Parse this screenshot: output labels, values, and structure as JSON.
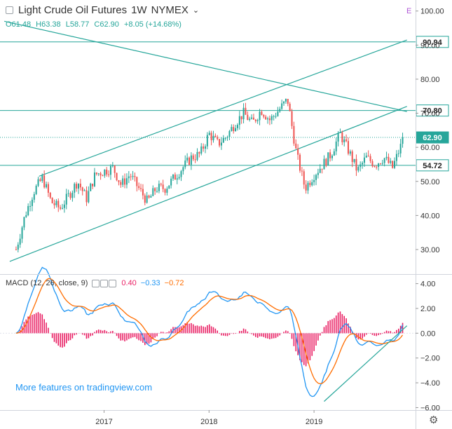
{
  "header": {
    "symbol": "Light Crude Oil Futures",
    "interval": "1W",
    "exchange": "NYMEX",
    "dropdown_glyph": "⌄",
    "badge": "E",
    "ohlc": {
      "o": "O61.48",
      "h": "H63.38",
      "l": "L58.77",
      "c": "C62.90",
      "chg": "+8.05 (+14.68%)"
    }
  },
  "macd_legend": {
    "label": "MACD (12, 26, close, 9)",
    "hist": "0.40",
    "macd": "−0.33",
    "signal": "−0.72",
    "colors": {
      "hist": "#e91e63",
      "macd": "#2196f3",
      "signal": "#ff6d00"
    }
  },
  "watermark": "More features on tradingview.com",
  "price_axis": {
    "ticks": [
      "100.00",
      "90.00",
      "80.00",
      "70.00",
      "60.00",
      "50.00",
      "40.00",
      "30.00"
    ],
    "tick_values": [
      100,
      90,
      80,
      70,
      60,
      50,
      40,
      30
    ]
  },
  "macd_axis": {
    "ticks": [
      "4.00",
      "2.00",
      "0.00",
      "−2.00",
      "−4.00",
      "−6.00"
    ],
    "tick_values": [
      4,
      2,
      0,
      -2,
      -4,
      -6
    ]
  },
  "time_axis": {
    "ticks": [
      "2017",
      "2018",
      "2019"
    ]
  },
  "levels": [
    {
      "label": "90.94",
      "value": 90.94
    },
    {
      "label": "70.80",
      "value": 70.8
    },
    {
      "label": "62.90",
      "value": 62.9,
      "current": true
    },
    {
      "label": "54.72",
      "value": 54.72
    }
  ],
  "colors": {
    "up": "#26a69a",
    "down": "#ef5350",
    "line": "#26a69a",
    "axis_text": "#333333"
  },
  "chart_data": {
    "type": "candlestick",
    "price_range": [
      23,
      102
    ],
    "macd_range": [
      -6.2,
      4.6
    ],
    "anchors": [
      [
        "2016-03-01",
        30
      ],
      [
        "2016-04-01",
        40
      ],
      [
        "2016-05-01",
        47
      ],
      [
        "2016-06-01",
        51
      ],
      [
        "2016-07-01",
        44
      ],
      [
        "2016-08-01",
        42
      ],
      [
        "2016-09-01",
        46
      ],
      [
        "2016-10-01",
        50
      ],
      [
        "2016-11-01",
        45
      ],
      [
        "2016-12-01",
        52
      ],
      [
        "2017-01-01",
        53
      ],
      [
        "2017-02-01",
        54
      ],
      [
        "2017-03-01",
        49
      ],
      [
        "2017-04-01",
        52
      ],
      [
        "2017-05-01",
        48
      ],
      [
        "2017-06-01",
        44
      ],
      [
        "2017-07-01",
        48
      ],
      [
        "2017-08-01",
        48
      ],
      [
        "2017-09-01",
        51
      ],
      [
        "2017-10-01",
        54
      ],
      [
        "2017-11-01",
        57
      ],
      [
        "2017-12-01",
        58
      ],
      [
        "2018-01-01",
        64
      ],
      [
        "2018-02-01",
        61
      ],
      [
        "2018-03-01",
        63
      ],
      [
        "2018-04-01",
        67
      ],
      [
        "2018-05-01",
        70
      ],
      [
        "2018-06-01",
        67
      ],
      [
        "2018-07-01",
        71
      ],
      [
        "2018-08-01",
        68
      ],
      [
        "2018-09-01",
        71
      ],
      [
        "2018-10-01",
        74
      ],
      [
        "2018-11-01",
        58
      ],
      [
        "2018-12-01",
        48
      ],
      [
        "2019-01-01",
        52
      ],
      [
        "2019-02-01",
        55
      ],
      [
        "2019-03-01",
        58
      ],
      [
        "2019-04-01",
        64
      ],
      [
        "2019-05-01",
        59
      ],
      [
        "2019-06-01",
        53
      ],
      [
        "2019-07-01",
        57
      ],
      [
        "2019-08-01",
        55
      ],
      [
        "2019-09-01",
        57
      ],
      [
        "2019-10-01",
        54
      ],
      [
        "2019-11-10",
        62.9
      ]
    ],
    "trendlines": [
      {
        "from": [
          "2016-02-08",
          26.5
        ],
        "to": [
          "2019-11-20",
          72
        ]
      },
      {
        "from": [
          "2016-05-20",
          51.5
        ],
        "to": [
          "2019-11-20",
          91.5
        ]
      },
      {
        "from": [
          "2016-01-20",
          97
        ],
        "to": [
          "2019-11-20",
          70.5
        ]
      }
    ],
    "macd_trendline": {
      "from": [
        "2019-02-05",
        -5.5
      ],
      "to": [
        "2019-11-20",
        0.6
      ]
    }
  }
}
